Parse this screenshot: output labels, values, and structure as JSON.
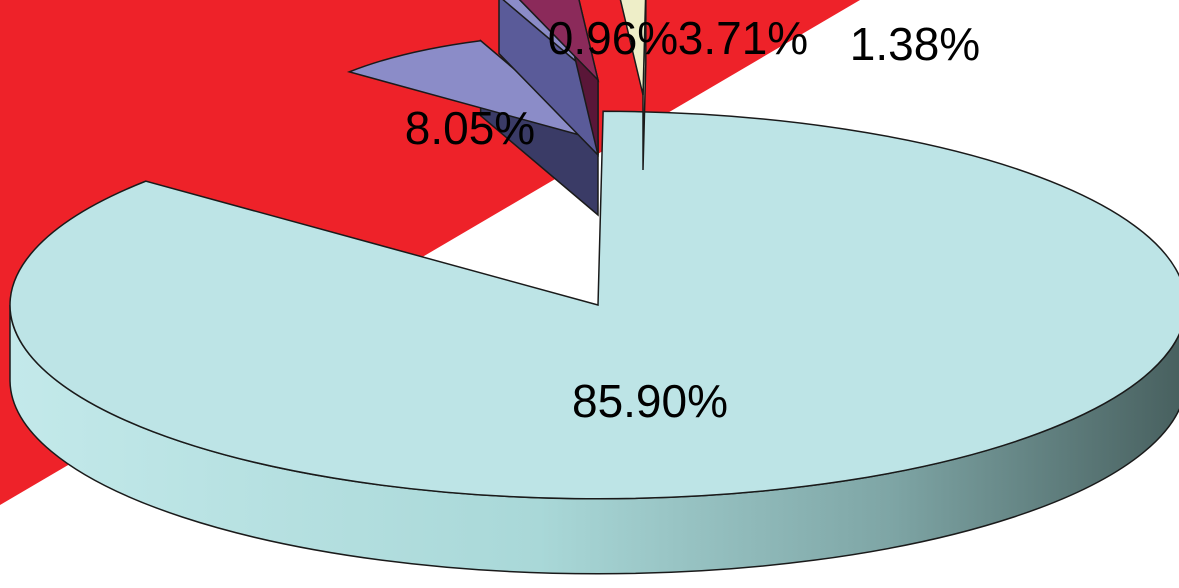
{
  "chart_data": {
    "type": "pie",
    "style": "3d-exploded",
    "values": [
      85.9,
      8.05,
      0.96,
      3.71,
      1.38
    ],
    "labels": [
      "85.90%",
      "8.05%",
      "0.96%",
      "3.71%",
      "1.38%"
    ],
    "colors": [
      "#bde4e6",
      "#8b8cc8",
      "#8b8cc8",
      "#8b2a5a",
      "#eeeec8"
    ],
    "side_colors": [
      "#55706f",
      "#3a3b66",
      "#5a5b99",
      "#5a1638",
      "#b8b898"
    ],
    "title": "",
    "legend": "none"
  },
  "background": {
    "accent_color": "#ee2229"
  }
}
